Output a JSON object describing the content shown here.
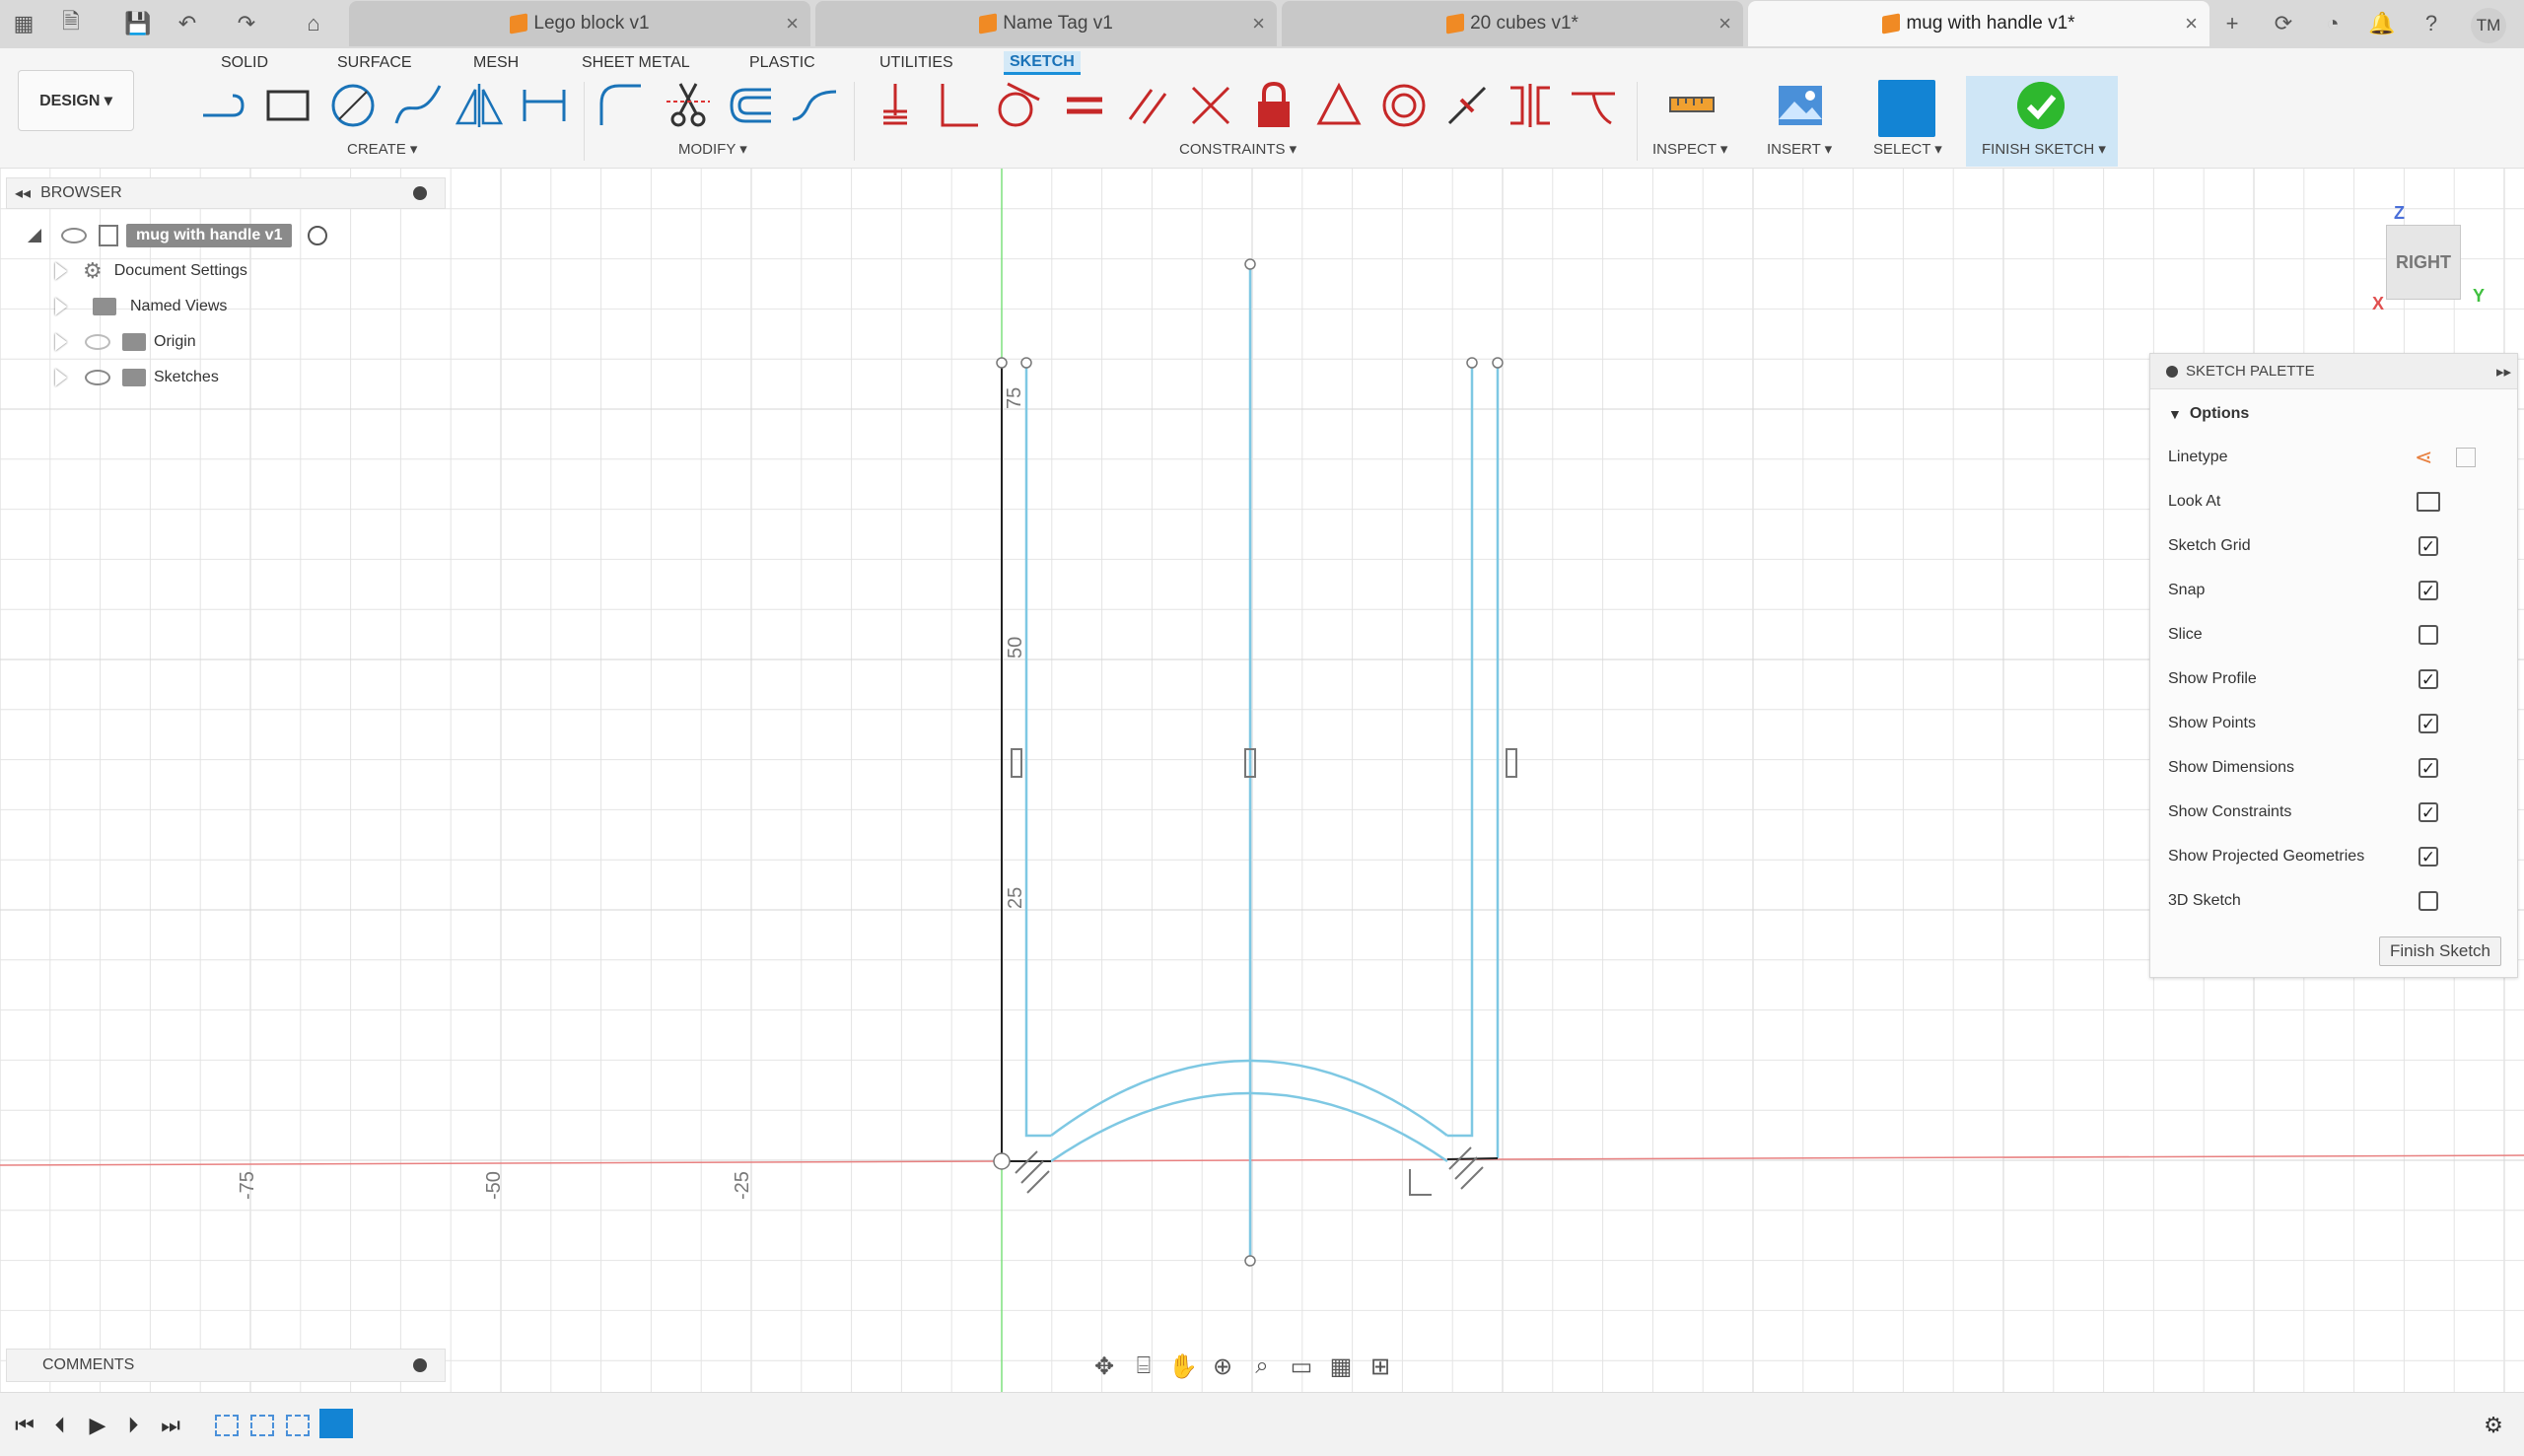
{
  "tabs": [
    {
      "label": "Lego block v1",
      "active": false
    },
    {
      "label": "Name Tag v1",
      "active": false
    },
    {
      "label": "20 cubes v1*",
      "active": false
    },
    {
      "label": "mug with handle v1*",
      "active": true
    }
  ],
  "user_initials": "TM",
  "workspace": {
    "label": "DESIGN ▾"
  },
  "ribbon_tabs": [
    "SOLID",
    "SURFACE",
    "MESH",
    "SHEET METAL",
    "PLASTIC",
    "UTILITIES",
    "SKETCH"
  ],
  "ribbon_groups": {
    "create": "CREATE ▾",
    "modify": "MODIFY ▾",
    "constraints": "CONSTRAINTS ▾",
    "inspect": "INSPECT ▾",
    "insert": "INSERT ▾",
    "select": "SELECT ▾",
    "finish": "FINISH SKETCH ▾"
  },
  "browser": {
    "title": "BROWSER",
    "root": "mug with handle v1",
    "items": [
      "Document Settings",
      "Named Views",
      "Origin",
      "Sketches"
    ]
  },
  "axis_labels": {
    "x": [
      "-75",
      "-50",
      "-25"
    ],
    "y": [
      "75",
      "50",
      "25"
    ],
    "left_edge": "100"
  },
  "viewcube": {
    "face": "RIGHT",
    "axis_z": "Z",
    "axis_x": "X",
    "axis_y": "Y"
  },
  "palette": {
    "title": "SKETCH PALETTE",
    "section": "Options",
    "rows": [
      {
        "label": "Linetype",
        "kind": "icons"
      },
      {
        "label": "Look At",
        "kind": "icon"
      },
      {
        "label": "Sketch Grid",
        "checked": true
      },
      {
        "label": "Snap",
        "checked": true
      },
      {
        "label": "Slice",
        "checked": false
      },
      {
        "label": "Show Profile",
        "checked": true
      },
      {
        "label": "Show Points",
        "checked": true
      },
      {
        "label": "Show Dimensions",
        "checked": true
      },
      {
        "label": "Show Constraints",
        "checked": true
      },
      {
        "label": "Show Projected Geometries",
        "checked": true
      },
      {
        "label": "3D Sketch",
        "checked": false
      }
    ],
    "finish_button": "Finish Sketch"
  },
  "comments": {
    "title": "COMMENTS"
  },
  "colors": {
    "accent": "#1384d4",
    "sketch_line": "#7ec8e3",
    "x_axis": "#e88080",
    "y_axis": "#7ee07e"
  }
}
